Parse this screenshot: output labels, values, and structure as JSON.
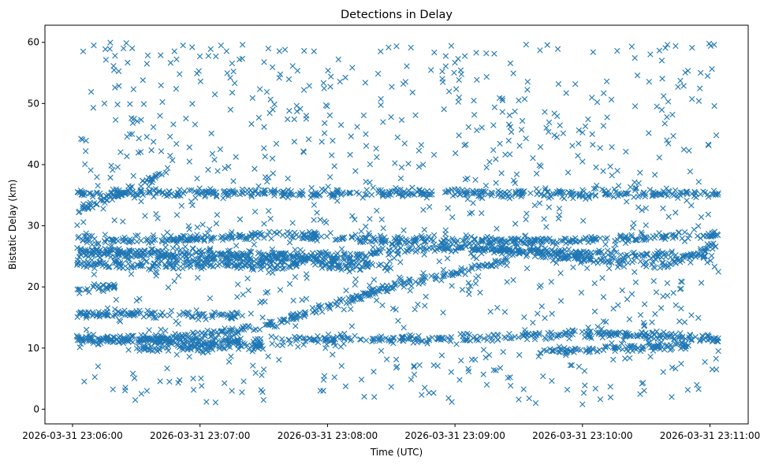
{
  "chart_data": {
    "type": "scatter",
    "title": "Detections in Delay",
    "xlabel": "Time (UTC)",
    "ylabel": "Bistatic Delay (km)",
    "marker": "x",
    "color": "#1f77b4",
    "x_range": [
      "2026-03-31 23:05:47",
      "2026-03-31 23:11:18"
    ],
    "ylim": [
      -2.4,
      62.8
    ],
    "xticks": [
      "2026-03-31 23:06:00",
      "2026-03-31 23:07:00",
      "2026-03-31 23:08:00",
      "2026-03-31 23:09:00",
      "2026-03-31 23:10:00",
      "2026-03-31 23:11:00"
    ],
    "yticks": [
      0,
      10,
      20,
      30,
      40,
      50,
      60
    ],
    "grid": false,
    "legend": "none",
    "data_span": [
      "2026-03-31 23:06:02",
      "2026-03-31 23:11:04"
    ],
    "tracks": [
      {
        "x": [
          "2026-03-31 23:06:02",
          "2026-03-31 23:06:20",
          "2026-03-31 23:06:45"
        ],
        "y": [
          32.5,
          35.0,
          39.0
        ]
      },
      {
        "x": [
          "2026-03-31 23:06:02",
          "2026-03-31 23:07:00",
          "2026-03-31 23:07:40",
          "2026-03-31 23:08:10",
          "2026-03-31 23:08:30"
        ],
        "y": [
          27.5,
          28.0,
          28.5,
          28.0,
          27.5
        ]
      },
      {
        "x": [
          "2026-03-31 23:06:02",
          "2026-03-31 23:07:00",
          "2026-03-31 23:08:00",
          "2026-03-31 23:09:00",
          "2026-03-31 23:10:00",
          "2026-03-31 23:11:04"
        ],
        "y": [
          26.0,
          25.5,
          25.0,
          26.5,
          25.5,
          25.0
        ]
      },
      {
        "x": [
          "2026-03-31 23:06:02",
          "2026-03-31 23:06:40",
          "2026-03-31 23:07:20",
          "2026-03-31 23:07:50",
          "2026-03-31 23:08:20"
        ],
        "y": [
          25.5,
          25.0,
          24.5,
          24.5,
          24.0
        ]
      },
      {
        "x": [
          "2026-03-31 23:08:30",
          "2026-03-31 23:09:20",
          "2026-03-31 23:10:10",
          "2026-03-31 23:11:04"
        ],
        "y": [
          27.5,
          27.5,
          27.8,
          28.5
        ]
      },
      {
        "x": [
          "2026-03-31 23:09:10",
          "2026-03-31 23:09:50",
          "2026-03-31 23:10:20",
          "2026-03-31 23:10:40",
          "2026-03-31 23:11:04"
        ],
        "y": [
          26.5,
          25.0,
          24.0,
          23.5,
          27.0
        ]
      },
      {
        "x": [
          "2026-03-31 23:06:02",
          "2026-03-31 23:06:40",
          "2026-03-31 23:07:10",
          "2026-03-31 23:07:40",
          "2026-03-31 23:08:00",
          "2026-03-31 23:08:30",
          "2026-03-31 23:09:00",
          "2026-03-31 23:09:25"
        ],
        "y": [
          11.5,
          11.5,
          12.5,
          14.5,
          17.0,
          20.0,
          22.5,
          24.5
        ]
      },
      {
        "x": [
          "2026-03-31 23:06:02",
          "2026-03-31 23:07:00",
          "2026-03-31 23:08:00",
          "2026-03-31 23:09:00",
          "2026-03-31 23:10:00",
          "2026-03-31 23:11:04"
        ],
        "y": [
          11.5,
          11.0,
          11.5,
          11.5,
          12.5,
          11.5
        ]
      },
      {
        "x": [
          "2026-03-31 23:06:30",
          "2026-03-31 23:07:00",
          "2026-03-31 23:07:30"
        ],
        "y": [
          10.0,
          10.0,
          10.5
        ]
      },
      {
        "x": [
          "2026-03-31 23:09:40",
          "2026-03-31 23:10:20",
          "2026-03-31 23:10:50"
        ],
        "y": [
          9.5,
          10.0,
          10.5
        ]
      },
      {
        "x": [
          "2026-03-31 23:06:02",
          "2026-03-31 23:07:00",
          "2026-03-31 23:08:00",
          "2026-03-31 23:09:00",
          "2026-03-31 23:10:00",
          "2026-03-31 23:11:04"
        ],
        "y": [
          35.3,
          35.3,
          35.3,
          35.3,
          35.3,
          35.3
        ]
      },
      {
        "x": [
          "2026-03-31 23:06:02",
          "2026-03-31 23:06:40",
          "2026-03-31 23:07:20"
        ],
        "y": [
          15.5,
          15.5,
          15.3
        ]
      },
      {
        "x": [
          "2026-03-31 23:06:02",
          "2026-03-31 23:06:20"
        ],
        "y": [
          19.5,
          20.0
        ]
      },
      {
        "x": [
          "2026-03-31 23:06:02",
          "2026-03-31 23:08:30"
        ],
        "y": [
          23.8,
          23.3
        ]
      }
    ],
    "sample_points": [
      {
        "x": "2026-03-31 23:06:05",
        "y": 58.5
      },
      {
        "x": "2026-03-31 23:06:10",
        "y": 59.5
      },
      {
        "x": "2026-03-31 23:06:20",
        "y": 57.8
      },
      {
        "x": "2026-03-31 23:06:35",
        "y": 56.5
      },
      {
        "x": "2026-03-31 23:06:52",
        "y": 59.5
      },
      {
        "x": "2026-03-31 23:07:05",
        "y": 58.9
      },
      {
        "x": "2026-03-31 23:07:20",
        "y": 59.6
      },
      {
        "x": "2026-03-31 23:07:40",
        "y": 58.8
      },
      {
        "x": "2026-03-31 23:08:25",
        "y": 58.5
      },
      {
        "x": "2026-03-31 23:09:10",
        "y": 58.3
      },
      {
        "x": "2026-03-31 23:09:40",
        "y": 58.7
      },
      {
        "x": "2026-03-31 23:10:05",
        "y": 58.4
      },
      {
        "x": "2026-03-31 23:10:40",
        "y": 59.6
      },
      {
        "x": "2026-03-31 23:11:02",
        "y": 59.6
      },
      {
        "x": "2026-03-31 23:06:15",
        "y": 50.0
      },
      {
        "x": "2026-03-31 23:07:50",
        "y": 48.0
      },
      {
        "x": "2026-03-31 23:09:30",
        "y": 50.5
      },
      {
        "x": "2026-03-31 23:10:35",
        "y": 49.5
      },
      {
        "x": "2026-03-31 23:06:28",
        "y": 45.0
      },
      {
        "x": "2026-03-31 23:08:18",
        "y": 45.0
      },
      {
        "x": "2026-03-31 23:09:48",
        "y": 44.5
      },
      {
        "x": "2026-03-31 23:11:03",
        "y": 44.8
      },
      {
        "x": "2026-03-31 23:06:55",
        "y": 40.5
      },
      {
        "x": "2026-03-31 23:08:45",
        "y": 40.0
      },
      {
        "x": "2026-03-31 23:10:00",
        "y": 40.5
      },
      {
        "x": "2026-03-31 23:06:35",
        "y": 3.0
      },
      {
        "x": "2026-03-31 23:07:03",
        "y": 1.2
      },
      {
        "x": "2026-03-31 23:07:15",
        "y": 3.0
      },
      {
        "x": "2026-03-31 23:07:58",
        "y": 3.0
      },
      {
        "x": "2026-03-31 23:08:22",
        "y": 2.0
      },
      {
        "x": "2026-03-31 23:09:15",
        "y": 4.0
      },
      {
        "x": "2026-03-31 23:09:38",
        "y": 1.0
      },
      {
        "x": "2026-03-31 23:10:00",
        "y": 0.8
      },
      {
        "x": "2026-03-31 23:10:28",
        "y": 4.2
      },
      {
        "x": "2026-03-31 23:10:42",
        "y": 2.0
      },
      {
        "x": "2026-03-31 23:06:12",
        "y": 7.0
      },
      {
        "x": "2026-03-31 23:07:30",
        "y": 6.5
      },
      {
        "x": "2026-03-31 23:08:50",
        "y": 7.2
      },
      {
        "x": "2026-03-31 23:09:55",
        "y": 7.2
      },
      {
        "x": "2026-03-31 23:11:03",
        "y": 6.5
      }
    ]
  }
}
